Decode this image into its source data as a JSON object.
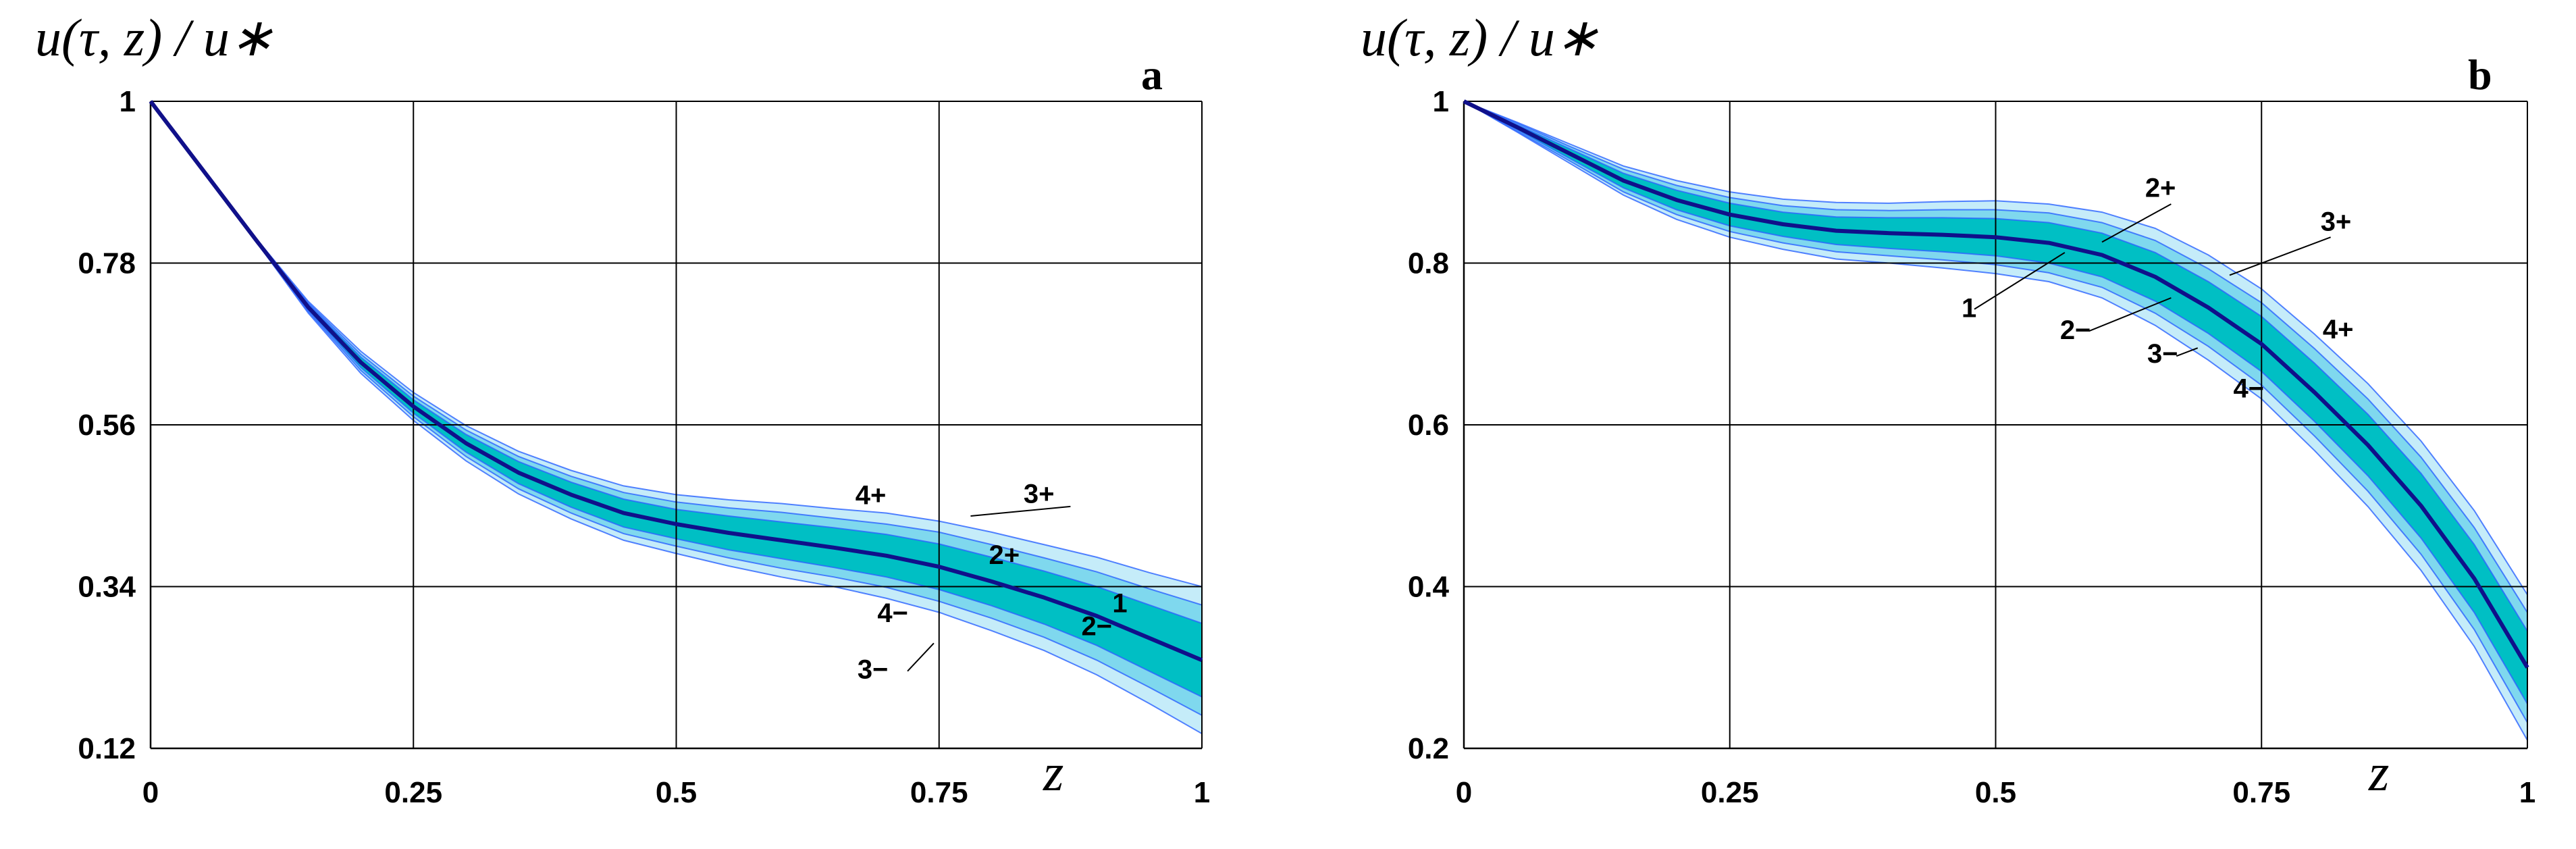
{
  "colors": {
    "mean_curve": "#10108a",
    "band_2": "#00bfc4",
    "band_3": "#7fd8ee",
    "band_4": "#bfeaf8",
    "band_edge": "#2a63ff",
    "grid": "#000000"
  },
  "chart_data": [
    {
      "type": "line",
      "panel": "a",
      "ylabel": "u(τ, z) / u∗",
      "xlabel": "z",
      "xlim": [
        0,
        1
      ],
      "ylim": [
        0.12,
        1
      ],
      "xticks": [
        0,
        0.25,
        0.5,
        0.75,
        1
      ],
      "xtick_labels": [
        "0",
        "0.25",
        "0.5",
        "0.75",
        "1"
      ],
      "yticks": [
        0.12,
        0.34,
        0.56,
        0.78,
        1
      ],
      "ytick_labels": [
        "0.12",
        "0.34",
        "0.56",
        "0.78",
        "1"
      ],
      "x": [
        0,
        0.05,
        0.1,
        0.15,
        0.2,
        0.25,
        0.3,
        0.35,
        0.4,
        0.45,
        0.5,
        0.55,
        0.6,
        0.65,
        0.7,
        0.75,
        0.8,
        0.85,
        0.9,
        0.95,
        1.0
      ],
      "mean": [
        1.0,
        0.906,
        0.812,
        0.72,
        0.645,
        0.585,
        0.535,
        0.495,
        0.465,
        0.44,
        0.425,
        0.413,
        0.403,
        0.393,
        0.382,
        0.367,
        0.347,
        0.325,
        0.3,
        0.27,
        0.24
      ],
      "series": [
        {
          "name": "1",
          "values": [
            1.0,
            0.906,
            0.812,
            0.72,
            0.645,
            0.585,
            0.535,
            0.495,
            0.465,
            0.44,
            0.425,
            0.413,
            0.403,
            0.393,
            0.382,
            0.367,
            0.347,
            0.325,
            0.3,
            0.27,
            0.24
          ]
        },
        {
          "name": "2+",
          "values": [
            1.0,
            0.906,
            0.813,
            0.724,
            0.652,
            0.594,
            0.547,
            0.51,
            0.482,
            0.459,
            0.445,
            0.436,
            0.428,
            0.42,
            0.411,
            0.398,
            0.38,
            0.361,
            0.34,
            0.315,
            0.29
          ]
        },
        {
          "name": "2−",
          "values": [
            1.0,
            0.906,
            0.811,
            0.716,
            0.638,
            0.576,
            0.523,
            0.48,
            0.448,
            0.421,
            0.405,
            0.39,
            0.378,
            0.366,
            0.353,
            0.336,
            0.314,
            0.289,
            0.26,
            0.225,
            0.19
          ]
        },
        {
          "name": "3+",
          "values": [
            1.0,
            0.906,
            0.813,
            0.726,
            0.656,
            0.599,
            0.553,
            0.517,
            0.49,
            0.468,
            0.455,
            0.447,
            0.441,
            0.433,
            0.425,
            0.414,
            0.397,
            0.379,
            0.36,
            0.337,
            0.315
          ]
        },
        {
          "name": "3−",
          "values": [
            1.0,
            0.906,
            0.811,
            0.714,
            0.634,
            0.571,
            0.517,
            0.473,
            0.44,
            0.412,
            0.395,
            0.379,
            0.365,
            0.353,
            0.339,
            0.32,
            0.297,
            0.271,
            0.24,
            0.203,
            0.165
          ]
        },
        {
          "name": "4+",
          "values": [
            1.0,
            0.907,
            0.814,
            0.728,
            0.66,
            0.604,
            0.559,
            0.524,
            0.498,
            0.477,
            0.465,
            0.458,
            0.453,
            0.446,
            0.44,
            0.429,
            0.414,
            0.397,
            0.38,
            0.359,
            0.34
          ]
        },
        {
          "name": "4−",
          "values": [
            1.0,
            0.905,
            0.81,
            0.712,
            0.63,
            0.566,
            0.511,
            0.466,
            0.432,
            0.403,
            0.385,
            0.368,
            0.353,
            0.34,
            0.324,
            0.305,
            0.28,
            0.253,
            0.22,
            0.181,
            0.14
          ]
        }
      ],
      "band_widths": {
        "2": [
          0,
          0.0,
          0.001,
          0.004,
          0.007,
          0.009,
          0.012,
          0.015,
          0.017,
          0.019,
          0.02,
          0.023,
          0.025,
          0.027,
          0.029,
          0.031,
          0.033,
          0.036,
          0.04,
          0.045,
          0.05
        ],
        "3": [
          0,
          0.0,
          0.001,
          0.006,
          0.011,
          0.014,
          0.018,
          0.022,
          0.025,
          0.028,
          0.03,
          0.034,
          0.038,
          0.04,
          0.043,
          0.047,
          0.05,
          0.054,
          0.06,
          0.067,
          0.075
        ],
        "4": [
          0,
          0.001,
          0.002,
          0.008,
          0.015,
          0.019,
          0.024,
          0.029,
          0.033,
          0.037,
          0.04,
          0.045,
          0.05,
          0.053,
          0.058,
          0.062,
          0.067,
          0.072,
          0.08,
          0.089,
          0.1
        ]
      },
      "annotations": [
        {
          "text": "4+",
          "x": 0.685,
          "y": 0.452
        },
        {
          "text": "3+",
          "x": 0.845,
          "y": 0.454
        },
        {
          "text": "2+",
          "x": 0.812,
          "y": 0.371
        },
        {
          "text": "1",
          "x": 0.922,
          "y": 0.305
        },
        {
          "text": "2−",
          "x": 0.9,
          "y": 0.274
        },
        {
          "text": "4−",
          "x": 0.706,
          "y": 0.292
        },
        {
          "text": "3−",
          "x": 0.687,
          "y": 0.215
        }
      ],
      "leaders": [
        {
          "from": [
            0.78,
            0.436
          ],
          "to": [
            0.875,
            0.449
          ]
        },
        {
          "from": [
            0.745,
            0.263
          ],
          "to": [
            0.72,
            0.225
          ]
        }
      ]
    },
    {
      "type": "line",
      "panel": "b",
      "ylabel": "u(τ, z) / u∗",
      "xlabel": "z",
      "xlim": [
        0,
        1
      ],
      "ylim": [
        0.2,
        1
      ],
      "xticks": [
        0,
        0.25,
        0.5,
        0.75,
        1
      ],
      "xtick_labels": [
        "0",
        "0.25",
        "0.5",
        "0.75",
        "1"
      ],
      "yticks": [
        0.2,
        0.4,
        0.6,
        0.8,
        1
      ],
      "ytick_labels": [
        "0.2",
        "0.4",
        "0.6",
        "0.8",
        "1"
      ],
      "x": [
        0,
        0.05,
        0.1,
        0.15,
        0.2,
        0.25,
        0.3,
        0.35,
        0.4,
        0.45,
        0.5,
        0.55,
        0.6,
        0.65,
        0.7,
        0.75,
        0.8,
        0.85,
        0.9,
        0.95,
        1.0
      ],
      "mean": [
        1.0,
        0.968,
        0.935,
        0.902,
        0.878,
        0.86,
        0.848,
        0.84,
        0.837,
        0.835,
        0.832,
        0.825,
        0.81,
        0.783,
        0.745,
        0.7,
        0.64,
        0.575,
        0.5,
        0.41,
        0.3
      ],
      "series": [
        {
          "name": "1",
          "values": [
            1.0,
            0.968,
            0.935,
            0.902,
            0.878,
            0.86,
            0.848,
            0.84,
            0.837,
            0.835,
            0.832,
            0.825,
            0.81,
            0.783,
            0.745,
            0.7,
            0.64,
            0.575,
            0.5,
            0.41,
            0.3
          ]
        },
        {
          "name": "2+",
          "values": [
            1.0,
            0.971,
            0.941,
            0.911,
            0.89,
            0.874,
            0.863,
            0.857,
            0.856,
            0.856,
            0.855,
            0.85,
            0.837,
            0.813,
            0.777,
            0.734,
            0.676,
            0.613,
            0.54,
            0.452,
            0.345
          ]
        },
        {
          "name": "2−",
          "values": [
            1.0,
            0.965,
            0.929,
            0.893,
            0.866,
            0.846,
            0.833,
            0.823,
            0.818,
            0.814,
            0.809,
            0.8,
            0.783,
            0.753,
            0.713,
            0.666,
            0.604,
            0.537,
            0.46,
            0.368,
            0.255
          ]
        },
        {
          "name": "3+",
          "values": [
            1.0,
            0.973,
            0.944,
            0.916,
            0.896,
            0.881,
            0.871,
            0.866,
            0.865,
            0.866,
            0.866,
            0.862,
            0.85,
            0.828,
            0.793,
            0.751,
            0.694,
            0.632,
            0.56,
            0.473,
            0.368
          ]
        },
        {
          "name": "3−",
          "values": [
            1.0,
            0.963,
            0.926,
            0.888,
            0.86,
            0.839,
            0.825,
            0.814,
            0.809,
            0.804,
            0.798,
            0.788,
            0.77,
            0.738,
            0.697,
            0.649,
            0.586,
            0.518,
            0.44,
            0.347,
            0.232
          ]
        },
        {
          "name": "4+",
          "values": [
            1.0,
            0.974,
            0.947,
            0.92,
            0.902,
            0.888,
            0.879,
            0.875,
            0.874,
            0.876,
            0.877,
            0.873,
            0.863,
            0.843,
            0.81,
            0.768,
            0.712,
            0.651,
            0.58,
            0.494,
            0.39
          ]
        },
        {
          "name": "4−",
          "values": [
            1.0,
            0.962,
            0.923,
            0.884,
            0.854,
            0.832,
            0.817,
            0.805,
            0.8,
            0.794,
            0.787,
            0.777,
            0.757,
            0.723,
            0.68,
            0.632,
            0.568,
            0.499,
            0.42,
            0.326,
            0.21
          ]
        }
      ],
      "band_widths": {
        "2": [
          0,
          0.003,
          0.006,
          0.009,
          0.012,
          0.014,
          0.015,
          0.017,
          0.019,
          0.021,
          0.023,
          0.025,
          0.027,
          0.03,
          0.032,
          0.034,
          0.036,
          0.038,
          0.04,
          0.042,
          0.045
        ],
        "3": [
          0,
          0.005,
          0.009,
          0.014,
          0.018,
          0.021,
          0.023,
          0.026,
          0.028,
          0.031,
          0.034,
          0.037,
          0.04,
          0.045,
          0.048,
          0.051,
          0.054,
          0.057,
          0.06,
          0.063,
          0.068
        ],
        "4": [
          0,
          0.006,
          0.012,
          0.018,
          0.024,
          0.028,
          0.031,
          0.035,
          0.037,
          0.041,
          0.045,
          0.048,
          0.053,
          0.06,
          0.065,
          0.068,
          0.072,
          0.076,
          0.08,
          0.084,
          0.09
        ]
      },
      "annotations": [
        {
          "text": "2+",
          "x": 0.655,
          "y": 0.882
        },
        {
          "text": "3+",
          "x": 0.82,
          "y": 0.84
        },
        {
          "text": "1",
          "x": 0.475,
          "y": 0.733
        },
        {
          "text": "2−",
          "x": 0.575,
          "y": 0.706
        },
        {
          "text": "3−",
          "x": 0.657,
          "y": 0.677
        },
        {
          "text": "4+",
          "x": 0.822,
          "y": 0.707
        },
        {
          "text": "4−",
          "x": 0.738,
          "y": 0.634
        }
      ],
      "leaders": [
        {
          "from": [
            0.6,
            0.826
          ],
          "to": [
            0.665,
            0.873
          ]
        },
        {
          "from": [
            0.72,
            0.785
          ],
          "to": [
            0.815,
            0.832
          ]
        },
        {
          "from": [
            0.48,
            0.743
          ],
          "to": [
            0.565,
            0.813
          ]
        },
        {
          "from": [
            0.588,
            0.716
          ],
          "to": [
            0.665,
            0.757
          ]
        },
        {
          "from": [
            0.67,
            0.685
          ],
          "to": [
            0.69,
            0.695
          ]
        }
      ]
    }
  ]
}
